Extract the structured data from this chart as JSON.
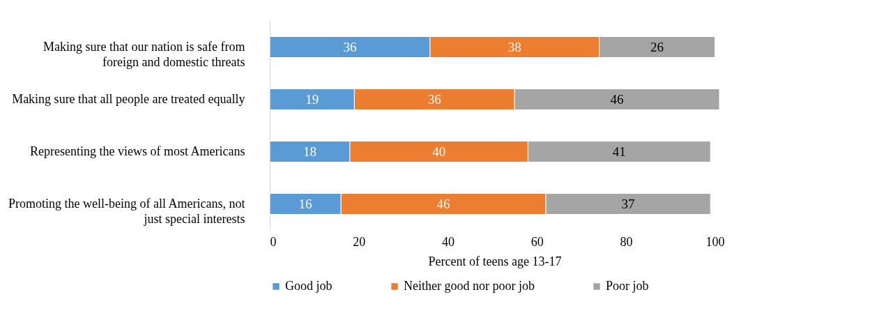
{
  "chart_data": {
    "type": "bar",
    "orientation": "horizontal",
    "stacked": true,
    "data_labels": true,
    "grid": false,
    "legend": "bottom",
    "xlabel": "Percent of teens age 13-17",
    "xlim": [
      0,
      101
    ],
    "xticks": [
      0,
      20,
      40,
      60,
      80,
      100
    ],
    "categories": [
      "Making sure that our nation is safe from foreign and domestic threats",
      "Making sure that all people are treated equally",
      "Representing the views of most Americans",
      "Promoting the well-being of all Americans, not just special interests"
    ],
    "series": [
      {
        "name": "Good job",
        "color": "#5b9bd5",
        "values": [
          36,
          19,
          18,
          16
        ]
      },
      {
        "name": "Neither good nor poor job",
        "color": "#ed7d31",
        "values": [
          38,
          36,
          40,
          46
        ]
      },
      {
        "name": "Poor job",
        "color": "#a5a5a5",
        "values": [
          26,
          46,
          41,
          37
        ]
      }
    ]
  }
}
